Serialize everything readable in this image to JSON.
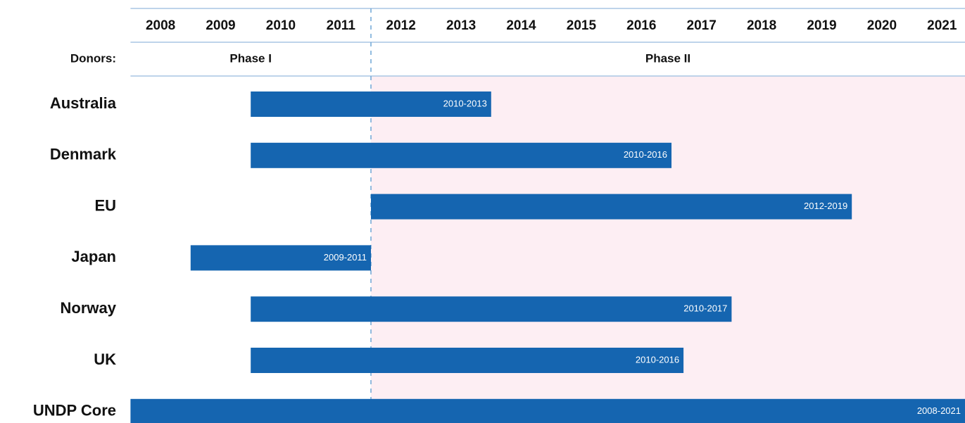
{
  "chart_data": {
    "type": "gantt",
    "row_header": "Donors:",
    "categories": [
      "Australia",
      "Denmark",
      "EU",
      "Japan",
      "Norway",
      "UK",
      "UNDP Core"
    ],
    "start": [
      2010,
      2010,
      2012,
      2009,
      2010,
      2010,
      2008
    ],
    "end": [
      2014,
      2017,
      2020,
      2012,
      2018,
      2017.2,
      2022
    ],
    "value_labels": [
      "2010-2013",
      "2010-2016",
      "2012-2019",
      "2009-2011",
      "2010-2017",
      "2010-2016",
      "2008-2021"
    ],
    "color": "#1565b0",
    "xlim": [
      2008,
      2022
    ],
    "xticks": [
      2008,
      2009,
      2010,
      2011,
      2012,
      2013,
      2014,
      2015,
      2016,
      2017,
      2018,
      2019,
      2020,
      2021
    ],
    "phases": [
      {
        "label": "Phase I",
        "start": 2008,
        "end": 2012,
        "color": "#ffffff"
      },
      {
        "label": "Phase II",
        "start": 2012,
        "end": 2022,
        "color": "#fdeef3"
      }
    ]
  }
}
